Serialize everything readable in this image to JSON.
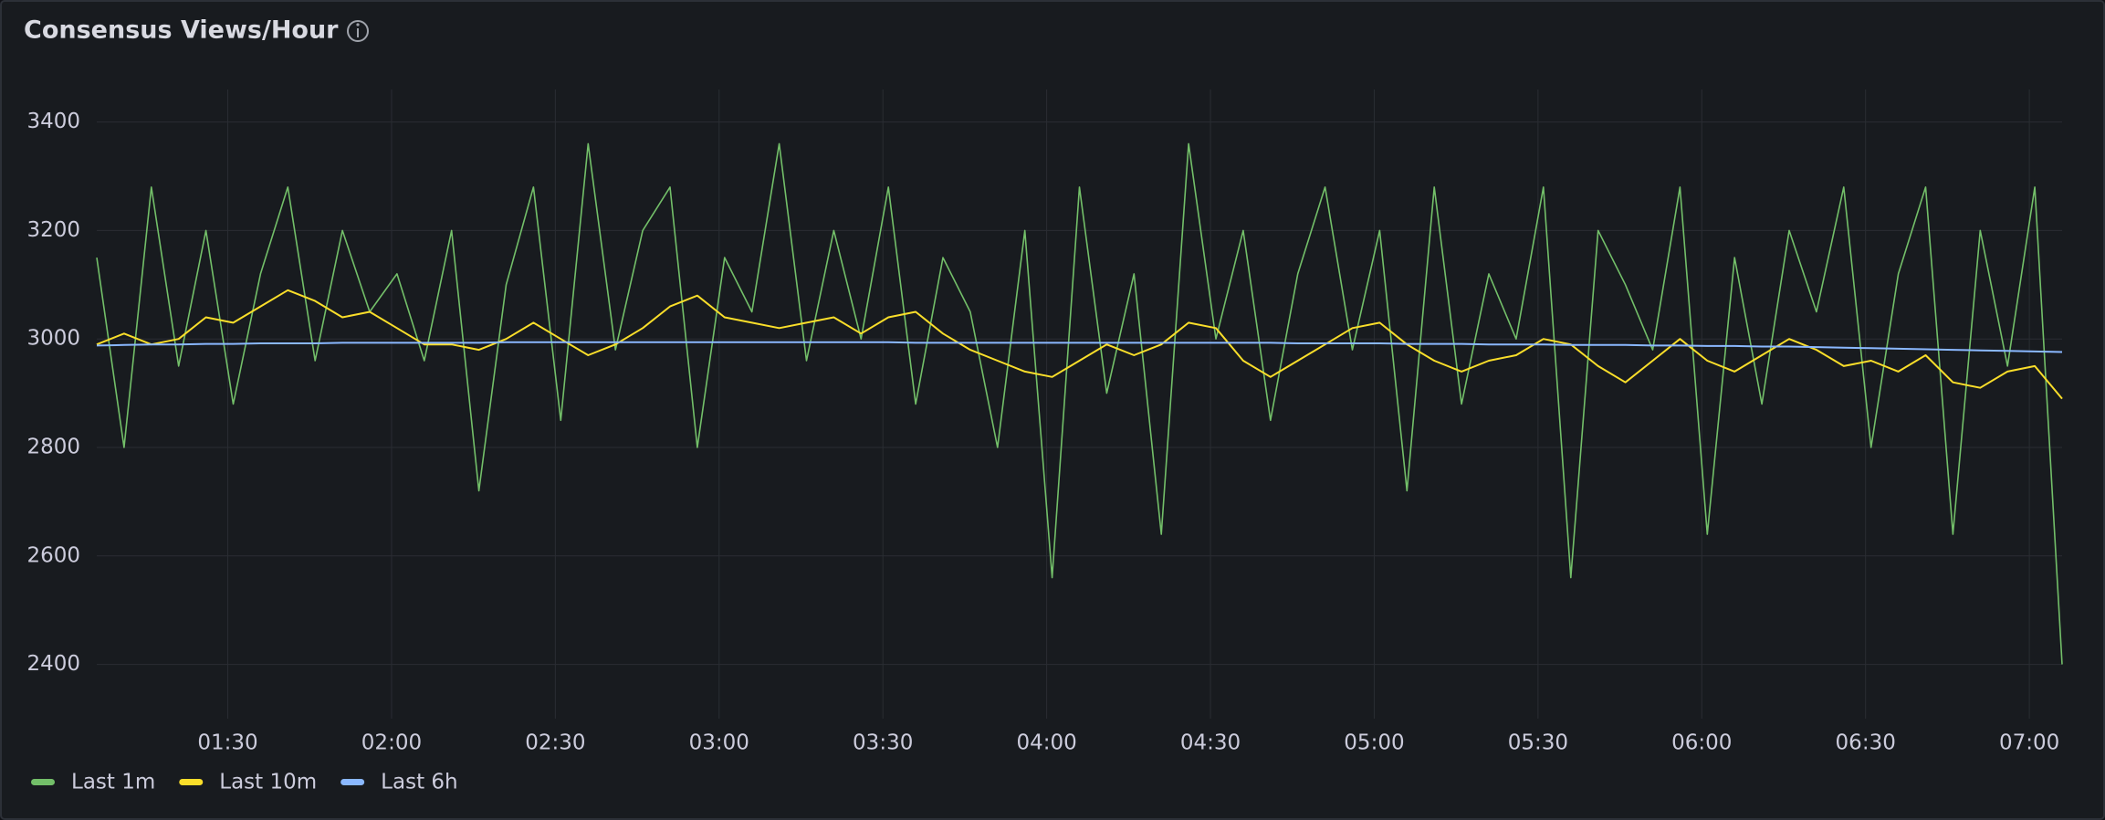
{
  "chart_data": {
    "type": "line",
    "title": "Consensus Views/Hour",
    "x": [
      "01:06",
      "01:11",
      "01:16",
      "01:21",
      "01:26",
      "01:31",
      "01:36",
      "01:41",
      "01:46",
      "01:51",
      "01:56",
      "02:01",
      "02:06",
      "02:11",
      "02:16",
      "02:21",
      "02:26",
      "02:31",
      "02:36",
      "02:41",
      "02:46",
      "02:51",
      "02:56",
      "03:01",
      "03:06",
      "03:11",
      "03:16",
      "03:21",
      "03:26",
      "03:31",
      "03:36",
      "03:41",
      "03:46",
      "03:51",
      "03:56",
      "04:01",
      "04:06",
      "04:11",
      "04:16",
      "04:21",
      "04:26",
      "04:31",
      "04:36",
      "04:41",
      "04:46",
      "04:51",
      "04:56",
      "05:01",
      "05:06",
      "05:11",
      "05:16",
      "05:21",
      "05:26",
      "05:31",
      "05:36",
      "05:41",
      "05:46",
      "05:51",
      "05:56",
      "06:01",
      "06:06",
      "06:11",
      "06:16",
      "06:21",
      "06:26",
      "06:31",
      "06:36",
      "06:41",
      "06:46",
      "06:51",
      "06:56",
      "07:01",
      "07:06"
    ],
    "series": [
      {
        "name": "Last 1m",
        "color": "#73bf69",
        "values": [
          3150,
          2800,
          3280,
          2950,
          3200,
          2880,
          3120,
          3280,
          2960,
          3200,
          3050,
          3120,
          2960,
          3200,
          2720,
          3100,
          3280,
          2850,
          3360,
          2980,
          3200,
          3280,
          2800,
          3150,
          3050,
          3360,
          2960,
          3200,
          3000,
          3280,
          2880,
          3150,
          3050,
          2800,
          3200,
          2560,
          3280,
          2900,
          3120,
          2640,
          3360,
          3000,
          3200,
          2850,
          3120,
          3280,
          2980,
          3200,
          2720,
          3280,
          2880,
          3120,
          3000,
          3280,
          2560,
          3200,
          3100,
          2980,
          3280,
          2640,
          3150,
          2880,
          3200,
          3050,
          3280,
          2800,
          3120,
          3280,
          2640,
          3200,
          2950,
          3280,
          2400
        ]
      },
      {
        "name": "Last 10m",
        "color": "#fade2a",
        "values": [
          2990,
          3010,
          2990,
          3000,
          3040,
          3030,
          3060,
          3090,
          3070,
          3040,
          3050,
          3020,
          2990,
          2990,
          2980,
          3000,
          3030,
          3000,
          2970,
          2990,
          3020,
          3060,
          3080,
          3040,
          3030,
          3020,
          3030,
          3040,
          3010,
          3040,
          3050,
          3010,
          2980,
          2960,
          2940,
          2930,
          2960,
          2990,
          2970,
          2990,
          3030,
          3020,
          2960,
          2930,
          2960,
          2990,
          3020,
          3030,
          2990,
          2960,
          2940,
          2960,
          2970,
          3000,
          2990,
          2950,
          2920,
          2960,
          3000,
          2960,
          2940,
          2970,
          3000,
          2980,
          2950,
          2960,
          2940,
          2970,
          2920,
          2910,
          2940,
          2950,
          2890
        ]
      },
      {
        "name": "Last 6h",
        "color": "#8ab8ff",
        "values": [
          2988,
          2989,
          2990,
          2990,
          2991,
          2991,
          2992,
          2992,
          2992,
          2993,
          2993,
          2993,
          2993,
          2993,
          2993,
          2994,
          2994,
          2994,
          2994,
          2994,
          2994,
          2994,
          2994,
          2994,
          2994,
          2994,
          2994,
          2994,
          2994,
          2994,
          2993,
          2993,
          2993,
          2993,
          2993,
          2993,
          2993,
          2993,
          2993,
          2993,
          2993,
          2993,
          2993,
          2993,
          2992,
          2992,
          2992,
          2992,
          2991,
          2991,
          2991,
          2990,
          2990,
          2990,
          2989,
          2989,
          2989,
          2988,
          2988,
          2987,
          2987,
          2986,
          2986,
          2985,
          2984,
          2983,
          2982,
          2981,
          2980,
          2979,
          2978,
          2977,
          2976
        ]
      }
    ],
    "xlim": [
      "01:06",
      "07:06"
    ],
    "xticks": [
      "01:30",
      "02:00",
      "02:30",
      "03:00",
      "03:30",
      "04:00",
      "04:30",
      "05:00",
      "05:30",
      "06:00",
      "06:30",
      "07:00"
    ],
    "ylim": [
      2300,
      3460
    ],
    "yticks": [
      2400,
      2600,
      2800,
      3000,
      3200,
      3400
    ],
    "grid": true,
    "legend": "bottom"
  }
}
